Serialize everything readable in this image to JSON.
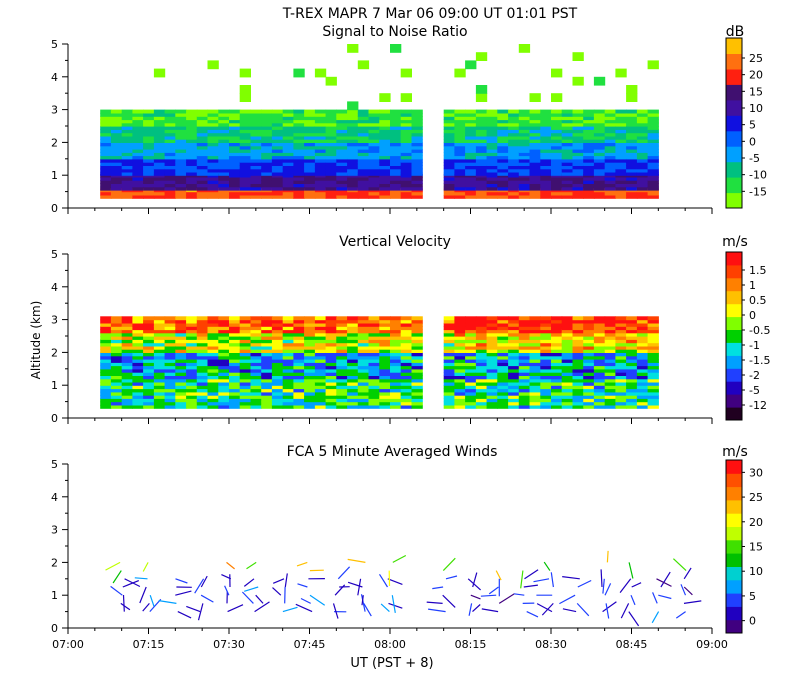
{
  "title": "T-REX   MAPR   7 Mar 06   09:00 UT   01:01   PST",
  "xlabel": "UT  (PST + 8)",
  "ylabel": "Altitude (km)",
  "x_ticks": [
    "07:00",
    "07:15",
    "07:30",
    "07:45",
    "08:00",
    "08:15",
    "08:30",
    "08:45",
    "09:00"
  ],
  "chart_data": [
    {
      "type": "heatmap",
      "title": "Signal to Noise Ratio",
      "unit": "dB",
      "xlim": [
        0,
        120
      ],
      "ylim": [
        0,
        5
      ],
      "y_ticks": [
        "0",
        "1",
        "2",
        "3",
        "4",
        "5"
      ],
      "colorbar": {
        "colors": [
          "#80ff00",
          "#20e040",
          "#00c080",
          "#00a0ff",
          "#0060ff",
          "#1010e0",
          "#4010a0",
          "#401070",
          "#ff2010",
          "#ff7010",
          "#ffc000"
        ],
        "labels": [
          "-15",
          "-10",
          "-5",
          "0",
          "5",
          "10",
          "15",
          "20",
          "25"
        ]
      },
      "data_gaps": [
        [
          66,
          70
        ]
      ],
      "layers": [
        {
          "range_km": [
            0.3,
            0.55
          ],
          "value_db": 20
        },
        {
          "range_km": [
            0.55,
            1.0
          ],
          "value_db": 10
        },
        {
          "range_km": [
            1.0,
            1.5
          ],
          "value_db": 3
        },
        {
          "range_km": [
            1.5,
            2.0
          ],
          "value_db": -3
        },
        {
          "range_km": [
            2.0,
            2.5
          ],
          "value_db": -8
        },
        {
          "range_km": [
            2.5,
            3.0
          ],
          "value_db": -13
        },
        {
          "range_km": [
            3.0,
            5.0
          ],
          "value_db": -16,
          "sparse": true
        }
      ]
    },
    {
      "type": "heatmap",
      "title": "Vertical Velocity",
      "unit": "m/s",
      "xlim": [
        0,
        120
      ],
      "ylim": [
        0,
        5
      ],
      "y_ticks": [
        "0",
        "1",
        "2",
        "3",
        "4",
        "5"
      ],
      "colorbar": {
        "colors": [
          "#200020",
          "#400080",
          "#2000c0",
          "#2040ff",
          "#00a0ff",
          "#00e0e0",
          "#00d000",
          "#80ff00",
          "#ffff00",
          "#ffc000",
          "#ff8000",
          "#ff4000",
          "#ff1010"
        ],
        "labels": [
          "-12",
          "-5",
          "-2",
          "-1.5",
          "-1",
          "-0.5",
          "0",
          "0.5",
          "1",
          "1.5"
        ]
      },
      "data_gaps": [
        [
          66,
          70
        ]
      ],
      "layers": [
        {
          "range_km": [
            0.3,
            1.2
          ],
          "value_ms": 0
        },
        {
          "range_km": [
            1.2,
            2.0
          ],
          "value_ms": -0.3
        },
        {
          "range_km": [
            2.0,
            2.6
          ],
          "value_ms": 0.5
        },
        {
          "range_km": [
            2.6,
            3.1
          ],
          "value_ms": 1.2
        }
      ]
    },
    {
      "type": "wind_barbs",
      "title": "FCA 5 Minute Averaged Winds",
      "unit": "m/s",
      "xlim": [
        0,
        120
      ],
      "ylim": [
        0,
        5
      ],
      "y_ticks": [
        "0",
        "1",
        "2",
        "3",
        "4",
        "5"
      ],
      "colorbar": {
        "colors": [
          "#400080",
          "#2000c0",
          "#2040ff",
          "#00a0ff",
          "#00d0d0",
          "#00c000",
          "#40e000",
          "#c0ff00",
          "#ffff00",
          "#ffc000",
          "#ff8000",
          "#ff5000",
          "#ff1010"
        ],
        "labels": [
          "0",
          "5",
          "10",
          "15",
          "20",
          "25",
          "30"
        ]
      },
      "times_min": [
        10,
        15,
        20,
        25,
        30,
        35,
        40,
        45,
        50,
        55,
        60,
        70,
        75,
        80,
        85,
        90,
        95,
        100,
        105,
        110,
        115
      ],
      "altitudes_km": [
        0.5,
        0.75,
        1.0,
        1.25,
        1.5,
        1.75,
        2.0
      ]
    }
  ]
}
